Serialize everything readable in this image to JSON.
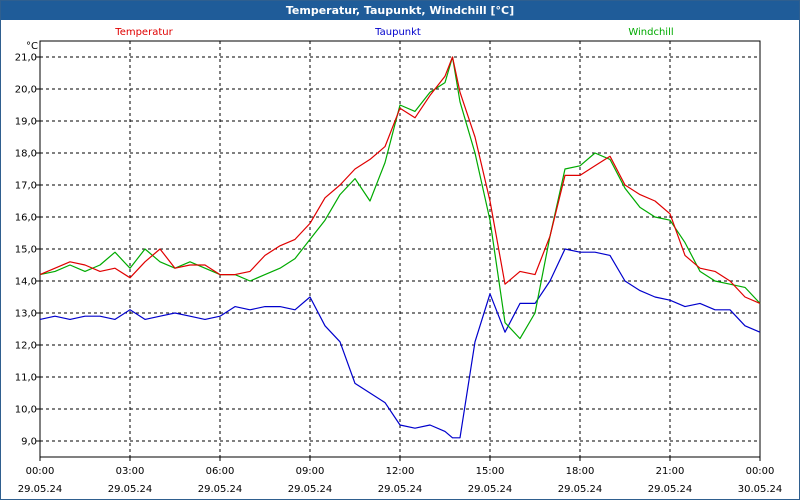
{
  "chart_data": {
    "type": "line",
    "title": "Temperatur, Taupunkt, Windchill [°C]",
    "ylabel": "°C",
    "ylim": [
      8.5,
      21.5
    ],
    "y_ticks": [
      "9,0",
      "10,0",
      "11,0",
      "12,0",
      "13,0",
      "14,0",
      "15,0",
      "16,0",
      "17,0",
      "18,0",
      "19,0",
      "20,0",
      "21,0"
    ],
    "xlim": [
      0,
      24
    ],
    "x_ticks": [
      {
        "time": "00:00",
        "date": "29.05.24"
      },
      {
        "time": "03:00",
        "date": "29.05.24"
      },
      {
        "time": "06:00",
        "date": "29.05.24"
      },
      {
        "time": "09:00",
        "date": "29.05.24"
      },
      {
        "time": "12:00",
        "date": "29.05.24"
      },
      {
        "time": "15:00",
        "date": "29.05.24"
      },
      {
        "time": "18:00",
        "date": "29.05.24"
      },
      {
        "time": "21:00",
        "date": "29.05.24"
      },
      {
        "time": "00:00",
        "date": "30.05.24"
      }
    ],
    "grid": true,
    "series": [
      {
        "name": "Temperatur",
        "color": "#e00000",
        "x": [
          0,
          0.5,
          1,
          1.5,
          2,
          2.5,
          3,
          3.5,
          4,
          4.5,
          5,
          5.5,
          6,
          6.5,
          7,
          7.5,
          8,
          8.5,
          9,
          9.5,
          10,
          10.5,
          11,
          11.5,
          12,
          12.5,
          13,
          13.5,
          13.75,
          14,
          14.5,
          15,
          15.5,
          16,
          16.5,
          17,
          17.5,
          18,
          18.5,
          19,
          19.5,
          20,
          20.5,
          21,
          21.5,
          22,
          22.5,
          23,
          23.5,
          24
        ],
        "values": [
          14.2,
          14.4,
          14.6,
          14.5,
          14.3,
          14.4,
          14.1,
          14.6,
          15.0,
          14.4,
          14.5,
          14.5,
          14.2,
          14.2,
          14.3,
          14.8,
          15.1,
          15.3,
          15.8,
          16.6,
          17.0,
          17.5,
          17.8,
          18.2,
          19.4,
          19.1,
          19.8,
          20.4,
          21.0,
          19.9,
          18.5,
          16.5,
          13.9,
          14.3,
          14.2,
          15.4,
          17.3,
          17.3,
          17.6,
          17.9,
          17.0,
          16.7,
          16.5,
          16.1,
          14.8,
          14.4,
          14.3,
          14.0,
          13.5,
          13.3
        ]
      },
      {
        "name": "Taupunkt",
        "color": "#0000cc",
        "x": [
          0,
          0.5,
          1,
          1.5,
          2,
          2.5,
          3,
          3.5,
          4,
          4.5,
          5,
          5.5,
          6,
          6.5,
          7,
          7.5,
          8,
          8.5,
          9,
          9.5,
          10,
          10.5,
          11,
          11.5,
          12,
          12.5,
          13,
          13.5,
          13.75,
          14,
          14.5,
          15,
          15.5,
          16,
          16.5,
          17,
          17.5,
          18,
          18.5,
          19,
          19.5,
          20,
          20.5,
          21,
          21.5,
          22,
          22.5,
          23,
          23.5,
          24
        ],
        "values": [
          12.8,
          12.9,
          12.8,
          12.9,
          12.9,
          12.8,
          13.1,
          12.8,
          12.9,
          13.0,
          12.9,
          12.8,
          12.9,
          13.2,
          13.1,
          13.2,
          13.2,
          13.1,
          13.5,
          12.6,
          12.1,
          10.8,
          10.5,
          10.2,
          9.5,
          9.4,
          9.5,
          9.3,
          9.1,
          9.1,
          12.1,
          13.6,
          12.4,
          13.3,
          13.3,
          14.0,
          15.0,
          14.9,
          14.9,
          14.8,
          14.0,
          13.7,
          13.5,
          13.4,
          13.2,
          13.3,
          13.1,
          13.1,
          12.6,
          12.4
        ]
      },
      {
        "name": "Windchill",
        "color": "#00aa00",
        "x": [
          0,
          0.5,
          1,
          1.5,
          2,
          2.5,
          3,
          3.5,
          4,
          4.5,
          5,
          5.5,
          6,
          6.5,
          7,
          7.5,
          8,
          8.5,
          9,
          9.5,
          10,
          10.5,
          11,
          11.5,
          12,
          12.5,
          13,
          13.5,
          13.75,
          14,
          14.5,
          15,
          15.5,
          16,
          16.5,
          17,
          17.5,
          18,
          18.5,
          19,
          19.5,
          20,
          20.5,
          21,
          21.5,
          22,
          22.5,
          23,
          23.5,
          24
        ],
        "values": [
          14.2,
          14.3,
          14.5,
          14.3,
          14.5,
          14.9,
          14.4,
          15.0,
          14.6,
          14.4,
          14.6,
          14.4,
          14.2,
          14.2,
          14.0,
          14.2,
          14.4,
          14.7,
          15.3,
          15.9,
          16.7,
          17.2,
          16.5,
          17.7,
          19.5,
          19.3,
          19.9,
          20.2,
          21.0,
          19.6,
          18.0,
          15.9,
          12.7,
          12.2,
          13.0,
          15.4,
          17.5,
          17.6,
          18.0,
          17.8,
          16.9,
          16.3,
          16.0,
          15.9,
          15.2,
          14.3,
          14.0,
          13.9,
          13.8,
          13.3
        ]
      }
    ]
  }
}
